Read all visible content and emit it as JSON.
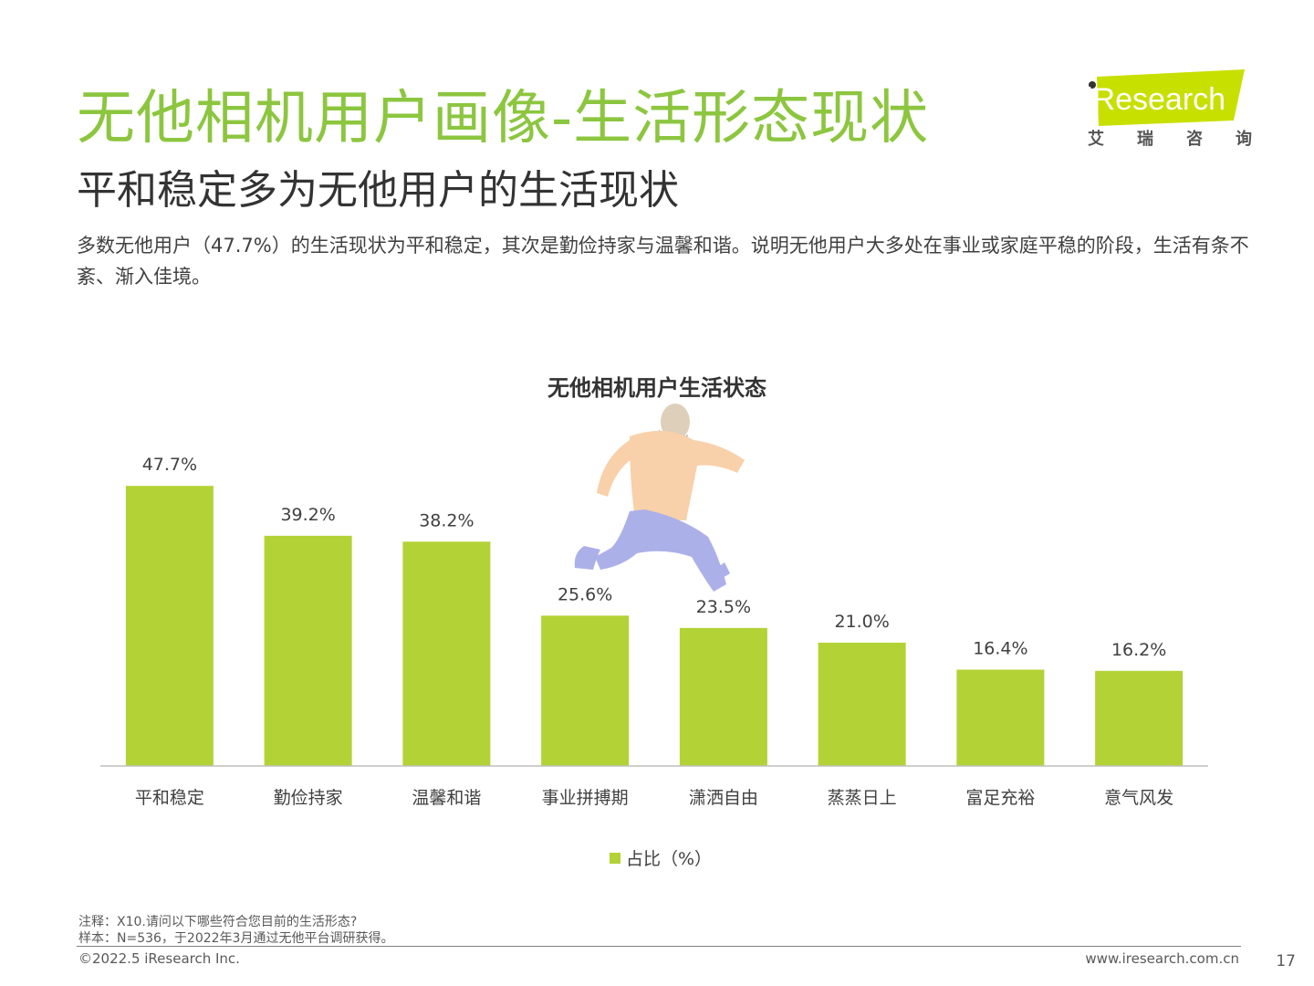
{
  "header": {
    "title": "无他相机用户画像-生活形态现状",
    "subtitle": "平和稳定多为无他用户的生活现状",
    "description": "多数无他用户（47.7%）的生活现状为平和稳定，其次是勤俭持家与温馨和谐。说明无他用户大多处在事业或家庭平稳的阶段，生活有条不紊、渐入佳境。"
  },
  "logo": {
    "text": "iResearch",
    "cn_chars": [
      "艾",
      "瑞",
      "咨",
      "询"
    ]
  },
  "chart_data": {
    "type": "bar",
    "title": "无他相机用户生活状态",
    "categories": [
      "平和稳定",
      "勤俭持家",
      "温馨和谐",
      "事业拼搏期",
      "潇洒自由",
      "蒸蒸日上",
      "富足充裕",
      "意气风发"
    ],
    "series": [
      {
        "name": "占比（%）",
        "values": [
          47.7,
          39.2,
          38.2,
          25.6,
          23.5,
          21.0,
          16.4,
          16.2
        ]
      }
    ],
    "data_labels": [
      "47.7%",
      "39.2%",
      "38.2%",
      "25.6%",
      "23.5%",
      "21.0%",
      "16.4%",
      "16.2%"
    ],
    "ylim": [
      0,
      50
    ],
    "grid": false,
    "legend_position": "bottom",
    "bar_color": "#b3d235"
  },
  "footer": {
    "note": "注释：X10.请问以下哪些符合您目前的生活形态?",
    "sample": "样本：N=536，于2022年3月通过无他平台调研获得。",
    "copyright": "©2022.5 iResearch Inc.",
    "url": "www.iresearch.com.cn",
    "page_number": "17"
  },
  "colors": {
    "title_green": "#8cc63f",
    "bar_green": "#b3d235",
    "illustration_shirt": "#f7c89b",
    "illustration_pants": "#9ea3e6"
  }
}
